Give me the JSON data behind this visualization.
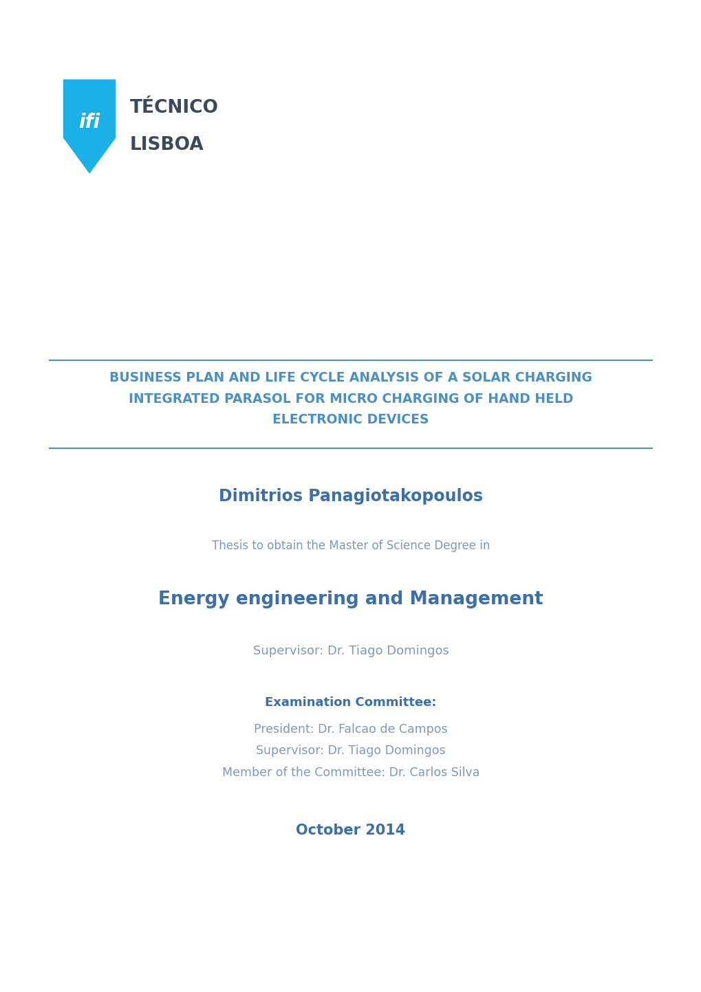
{
  "background_color": "#ffffff",
  "title_line1": "BUSINESS PLAN AND LIFE CYCLE ANALYSIS OF A SOLAR CHARGING",
  "title_line2": "INTEGRATED PARASOL FOR MICRO CHARGING OF HAND HELD",
  "title_line3": "ELECTRONIC DEVICES",
  "title_color": "#4a90c4",
  "author_name": "Dimitrios Panagiotakopoulos",
  "author_color": "#3a6fa8",
  "thesis_text": "Thesis to obtain the Master of Science Degree in",
  "thesis_color": "#7a9abf",
  "degree": "Energy engineering and Management",
  "degree_color": "#3a6fa8",
  "supervisor_label": "Supervisor: Dr. Tiago Domingos",
  "supervisor_color": "#7a9abf",
  "exam_committee_label": "Examination Committee:",
  "exam_committee_color": "#3a6fa8",
  "president": "President: Dr. Falcao de Campos",
  "supervisor2": "Supervisor: Dr. Tiago Domingos",
  "member": "Member of the Committee: Dr. Carlos Silva",
  "committee_color": "#7a9abf",
  "date": "October 2014",
  "date_color": "#3a6fa8",
  "logo_shield_color": "#1ab0e8",
  "logo_text_color": "#3a4a5a",
  "line_color": "#4a90c4",
  "tecnico_text": "TÉCNICO",
  "lisboa_text": "LISBOA"
}
